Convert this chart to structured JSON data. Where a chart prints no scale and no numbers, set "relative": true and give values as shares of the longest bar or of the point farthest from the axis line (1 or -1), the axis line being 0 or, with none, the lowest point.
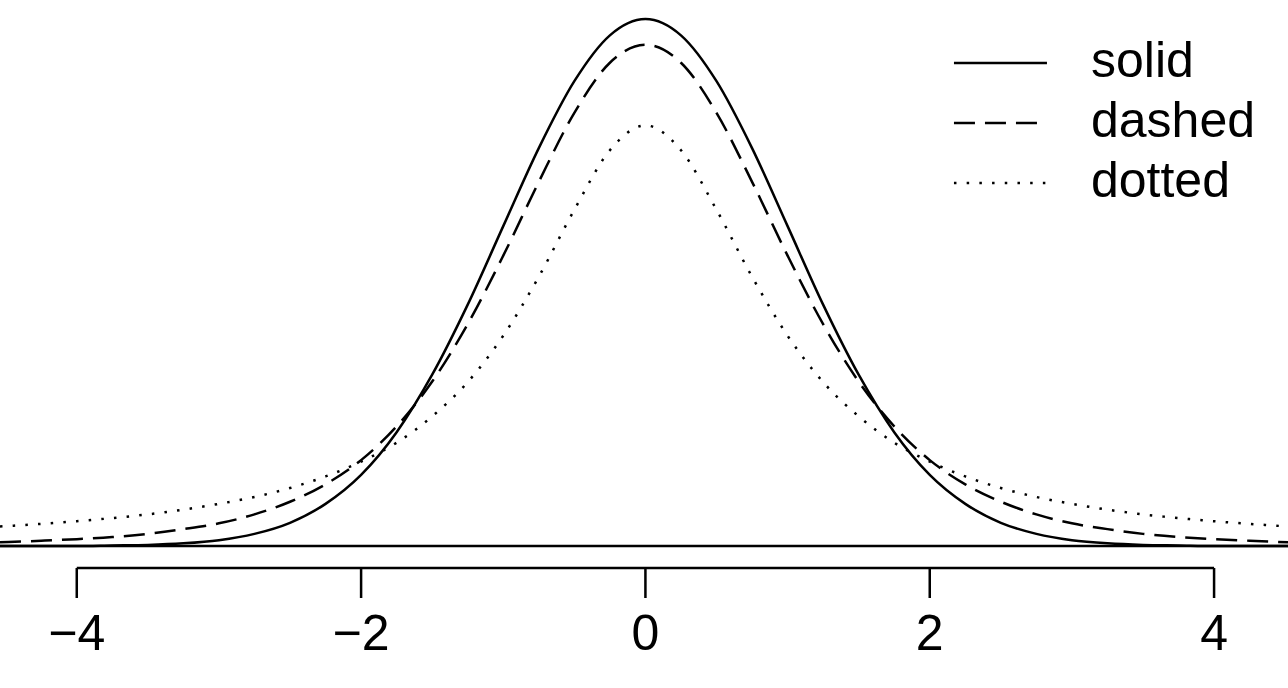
{
  "chart_data": {
    "type": "line",
    "relative": true,
    "legend": "top right",
    "xlim": [
      -4.54,
      4.52
    ],
    "xticks": [
      {
        "value": -4,
        "label": "−4"
      },
      {
        "value": -2,
        "label": "−2"
      },
      0,
      2,
      4
    ],
    "x": [
      -4.54,
      -4.25,
      -4,
      -3.75,
      -3.5,
      -3.25,
      -3,
      -2.75,
      -2.5,
      -2.25,
      -2,
      -1.75,
      -1.5,
      -1.25,
      -1,
      -0.75,
      -0.5,
      -0.25,
      0,
      0.25,
      0.5,
      0.75,
      1,
      1.25,
      1.5,
      1.75,
      2,
      2.25,
      2.5,
      2.75,
      3,
      3.25,
      3.5,
      3.75,
      4,
      4.25,
      4.52
    ],
    "series": [
      {
        "name": "solid",
        "color": "#000000",
        "line_style": "solid",
        "values": [
          0,
          0,
          0,
          0.001,
          0.002,
          0.005,
          0.011,
          0.023,
          0.044,
          0.08,
          0.135,
          0.216,
          0.325,
          0.458,
          0.607,
          0.755,
          0.882,
          0.969,
          1,
          0.969,
          0.882,
          0.755,
          0.607,
          0.458,
          0.325,
          0.216,
          0.135,
          0.08,
          0.044,
          0.023,
          0.011,
          0.005,
          0.002,
          0.001,
          0,
          0,
          0
        ]
      },
      {
        "name": "dashed",
        "color": "#000000",
        "line_style": "dashed",
        "values": [
          0.007,
          0.01,
          0.013,
          0.017,
          0.023,
          0.032,
          0.043,
          0.06,
          0.084,
          0.117,
          0.163,
          0.227,
          0.312,
          0.421,
          0.551,
          0.691,
          0.822,
          0.917,
          0.951,
          0.917,
          0.822,
          0.691,
          0.551,
          0.421,
          0.312,
          0.227,
          0.163,
          0.117,
          0.084,
          0.06,
          0.043,
          0.032,
          0.023,
          0.017,
          0.013,
          0.01,
          0.007
        ]
      },
      {
        "name": "dotted",
        "color": "#000000",
        "line_style": "dotted",
        "values": [
          0.037,
          0.042,
          0.047,
          0.053,
          0.06,
          0.069,
          0.08,
          0.093,
          0.11,
          0.132,
          0.16,
          0.196,
          0.246,
          0.311,
          0.399,
          0.511,
          0.638,
          0.751,
          0.798,
          0.751,
          0.638,
          0.511,
          0.399,
          0.311,
          0.246,
          0.196,
          0.16,
          0.132,
          0.11,
          0.093,
          0.08,
          0.069,
          0.06,
          0.053,
          0.047,
          0.042,
          0.037
        ]
      }
    ]
  }
}
